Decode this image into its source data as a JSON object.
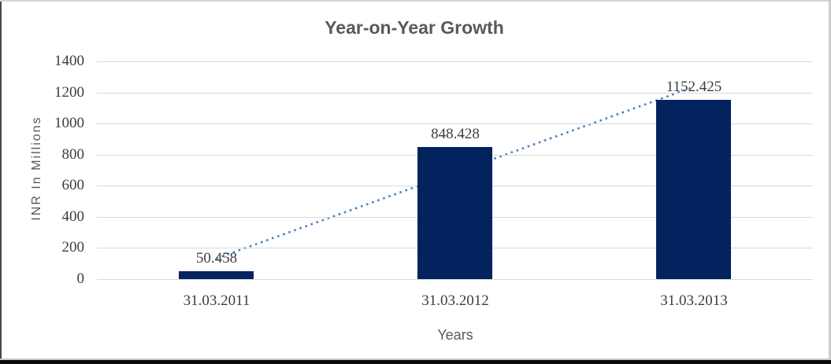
{
  "window": {
    "background": "#ffffff",
    "border_left_color": "#474747",
    "border_top_color": "#d6d6d6",
    "border_right_color": "#cccccc",
    "bottom_line_color": "#c9c9c9",
    "bottom_bar_color": "#0a0a0a"
  },
  "chart_data": {
    "type": "bar",
    "title": "Year-on-Year Growth",
    "xlabel": "Years",
    "ylabel": "INR In Millions",
    "categories": [
      "31.03.2011",
      "31.03.2012",
      "31.03.2013"
    ],
    "values": [
      50.458,
      848.428,
      1152.425
    ],
    "data_labels": [
      "50.458",
      "848.428",
      "1152.425"
    ],
    "yticks": [
      0,
      200,
      400,
      600,
      800,
      1000,
      1200,
      1400
    ],
    "ylim": [
      0,
      1400
    ],
    "grid": true,
    "legend": "none",
    "bar_color": "#03235e",
    "gridline_color": "#d9d9d9",
    "tick_label_color": "#3d3d3d",
    "data_label_color": "#3d3d3d",
    "title_color": "#595959",
    "axis_title_color": "#595959",
    "trendline": {
      "type": "linear",
      "style": "dotted",
      "color": "#4a7ec4",
      "start_value": 132.8,
      "end_value": 1234.8
    }
  }
}
